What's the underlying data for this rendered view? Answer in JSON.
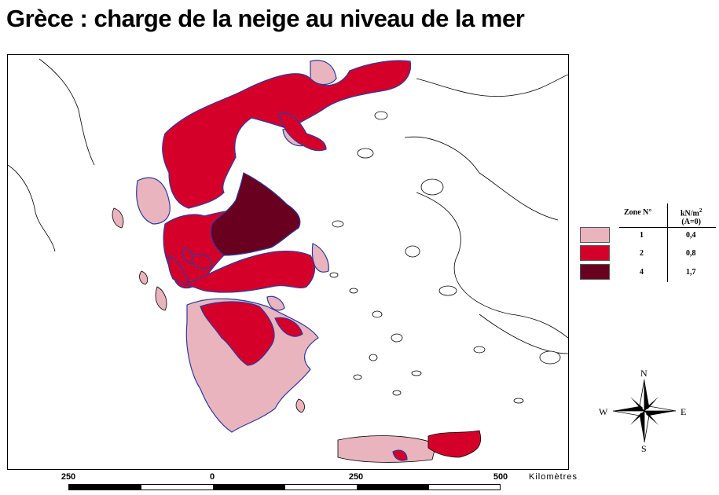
{
  "title": "Grèce : charge de la neige au niveau de la mer",
  "colors": {
    "zone1": "#e9b4bd",
    "zone2": "#d4002a",
    "zone4": "#6a0020",
    "boundary": "#2c3aa0",
    "coast": "#000000"
  },
  "legend": {
    "header_zone": "Zone N°",
    "header_unit_line1": "kN/m",
    "header_unit_sup": "2",
    "header_unit_line2": "(A=0)",
    "rows": [
      {
        "zone": "1",
        "value": "0,4"
      },
      {
        "zone": "2",
        "value": "0,8"
      },
      {
        "zone": "4",
        "value": "1,7"
      }
    ]
  },
  "compass": {
    "n": "N",
    "s": "S",
    "e": "E",
    "w": "W"
  },
  "scale": {
    "ticks": [
      "250",
      "0",
      "250",
      "500"
    ],
    "unit": "Kilomètres"
  }
}
